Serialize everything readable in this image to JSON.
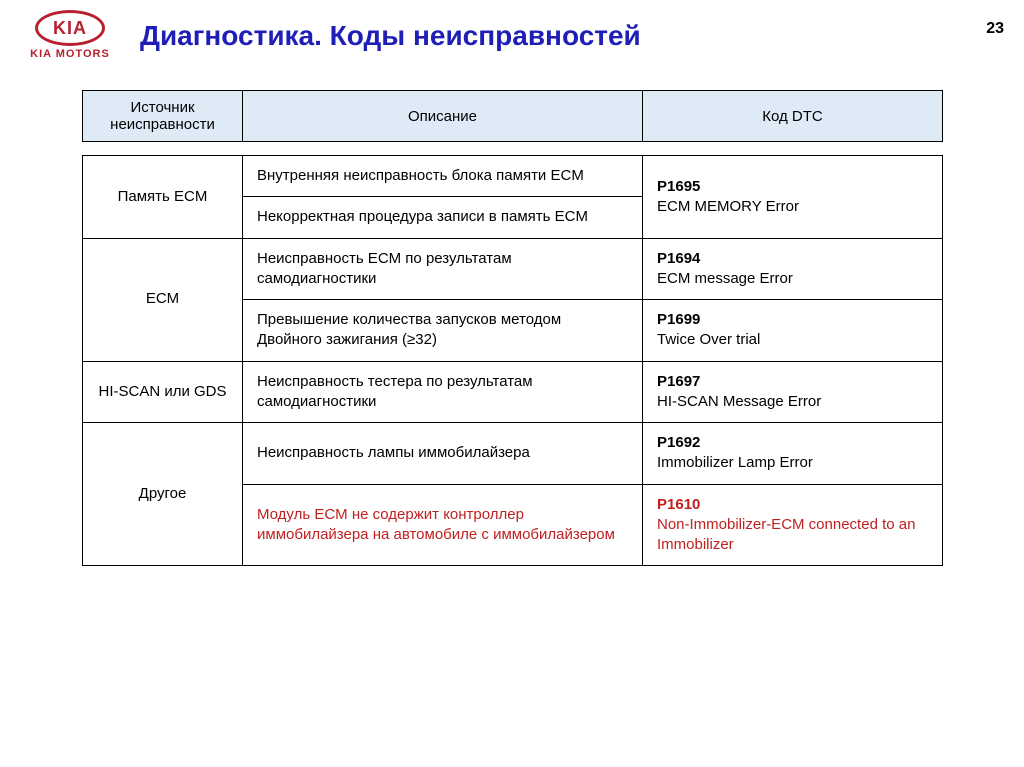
{
  "logo": {
    "oval_text": "KIA",
    "sub_text": "KIA MOTORS"
  },
  "title": "Диагностика. Коды неисправностей",
  "page_number": "23",
  "table": {
    "columns": {
      "source": "Источник неисправности",
      "desc": "Описание",
      "dtc": "Код DTC"
    },
    "header_bg": "#deebf7",
    "border_color": "#000000",
    "highlight_color": "#c02020",
    "groups": [
      {
        "source": "Память ECM",
        "rows": [
          {
            "desc": "Внутренняя неисправность блока памяти ECM",
            "code": "P1695",
            "code_label": "ECM MEMORY Error",
            "dtc_rowspan": 2
          },
          {
            "desc": "Некорректная процедура записи в память ECM"
          }
        ]
      },
      {
        "source": "ECM",
        "rows": [
          {
            "desc": "Неисправность ECM по результатам самодиагностики",
            "code": "P1694",
            "code_label": "ECM message Error"
          },
          {
            "desc": "Превышение количества запусков методом Двойного зажигания (≥32)",
            "code": "P1699",
            "code_label": "Twice Over trial"
          }
        ]
      },
      {
        "source": "HI-SCAN или GDS",
        "rows": [
          {
            "desc": "Неисправность тестера по результатам самодиагностики",
            "code": "P1697",
            "code_label": "HI-SCAN Message Error"
          }
        ]
      },
      {
        "source": "Другое",
        "rows": [
          {
            "desc": "Неисправность лампы иммобилайзера",
            "code": "P1692",
            "code_label": "Immobilizer Lamp Error"
          },
          {
            "desc": "Модуль ECM не содержит контроллер иммобилайзера на автомобиле с иммобилайзером",
            "code": "P1610",
            "code_label": "Non-Immobilizer-ECM connected to an Immobilizer",
            "highlight": true
          }
        ]
      }
    ]
  }
}
